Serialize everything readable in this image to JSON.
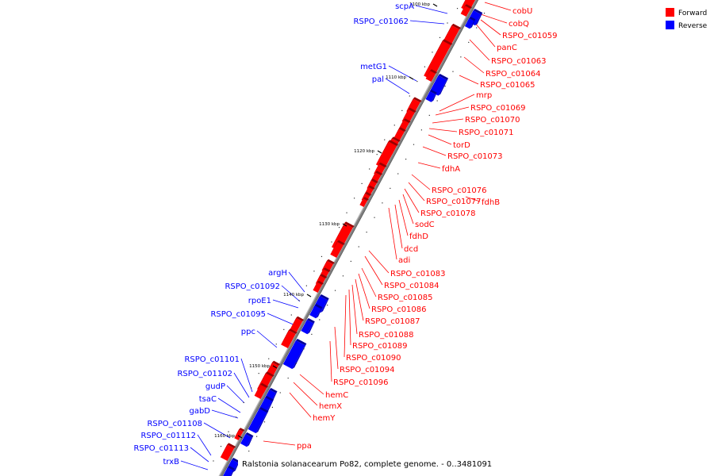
{
  "colors": {
    "forward": "#ff0000",
    "reverse": "#0000ff",
    "backbone": "#808080"
  },
  "legend": {
    "forward": "Forward",
    "reverse": "Reverse"
  },
  "caption": "Ralstonia solanacearum Po82, complete genome. - 0..3481091",
  "ticks": [
    "1100 kbp",
    "1110 kbp",
    "1120 kbp",
    "1130 kbp",
    "1140 kbp",
    "1150 kbp",
    "1160 kbp"
  ],
  "forward_labels": [
    "cobU",
    "cobQ",
    "RSPO_c01059",
    "panC",
    "RSPO_c01063",
    "RSPO_c01064",
    "RSPO_c01065",
    "mrp",
    "RSPO_c01069",
    "RSPO_c01070",
    "RSPO_c01071",
    "torD",
    "RSPO_c01073",
    "fdhA",
    "RSPO_c01076",
    "RSPO_c01077",
    "fdhB",
    "RSPO_c01078",
    "sodC",
    "fdhD",
    "dcd",
    "adi",
    "RSPO_c01083",
    "RSPO_c01084",
    "RSPO_c01085",
    "RSPO_c01086",
    "RSPO_c01087",
    "RSPO_c01088",
    "RSPO_c01089",
    "RSPO_c01090",
    "RSPO_c01094",
    "RSPO_c01096",
    "hemC",
    "hemX",
    "hemY",
    "ppa"
  ],
  "reverse_labels": [
    "scpA",
    "RSPO_c01062",
    "metG1",
    "pal",
    "argH",
    "RSPO_c01092",
    "rpoE1",
    "RSPO_c01095",
    "ppc",
    "RSPO_c01101",
    "RSPO_c01102",
    "gudP",
    "tsaC",
    "gabD",
    "RSPO_c01108",
    "RSPO_c01112",
    "RSPO_c01113",
    "trxB"
  ]
}
